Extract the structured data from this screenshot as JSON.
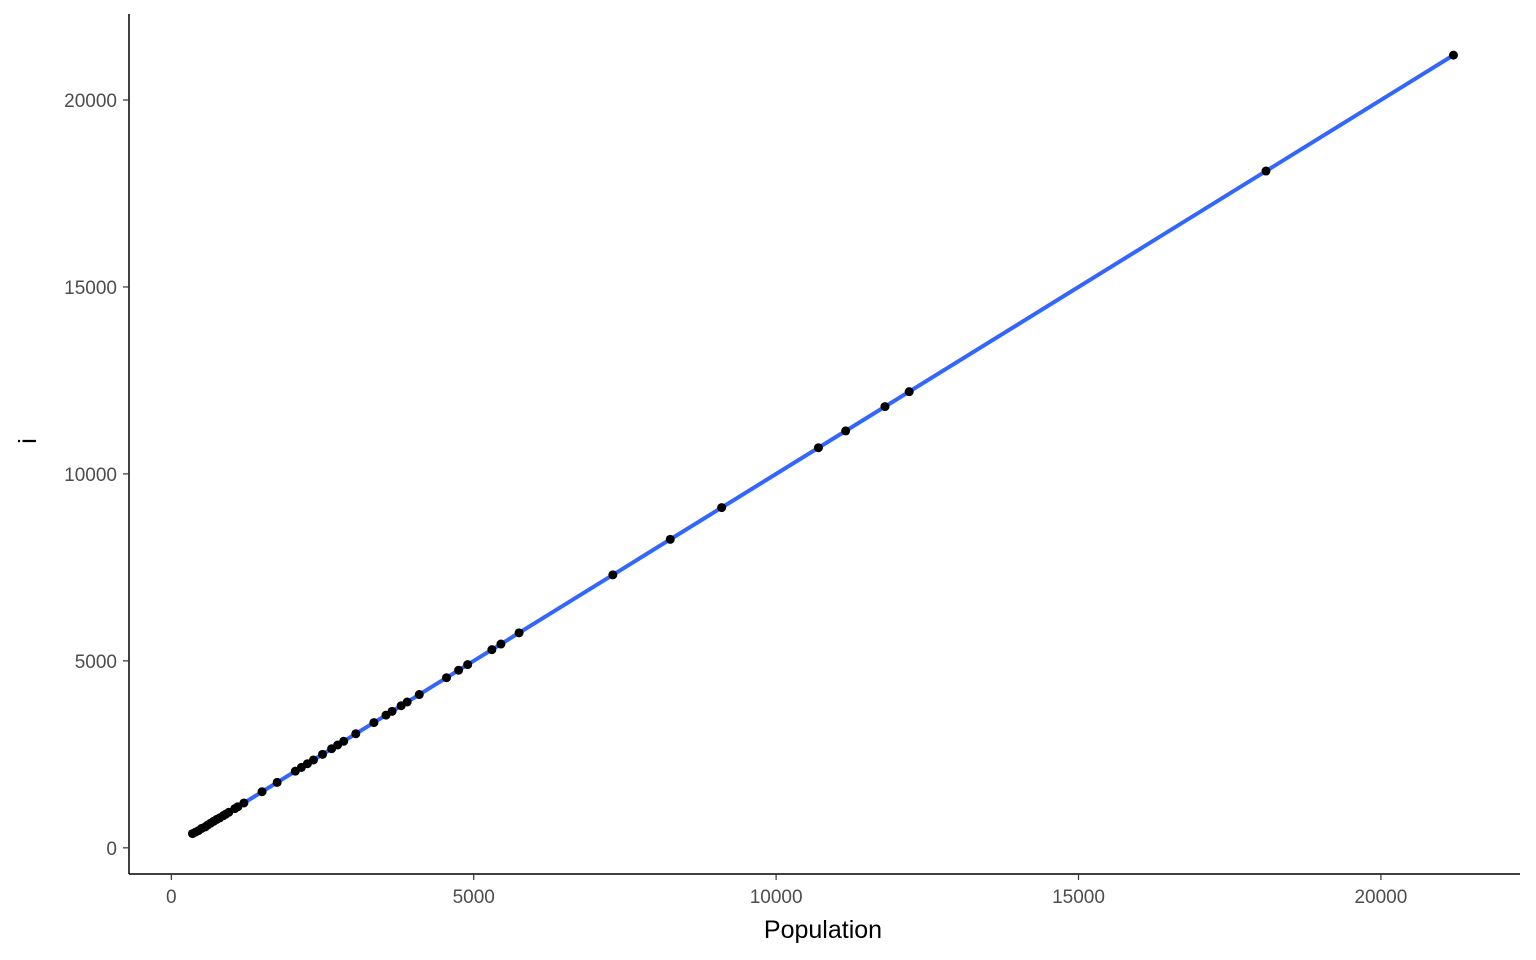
{
  "chart_data": {
    "type": "scatter",
    "title": "",
    "xlabel": "Population",
    "ylabel": "i",
    "xlim": [
      -700,
      22300
    ],
    "ylim": [
      -700,
      22300
    ],
    "x_ticks": [
      0,
      5000,
      10000,
      15000,
      20000
    ],
    "y_ticks": [
      0,
      5000,
      10000,
      15000,
      20000
    ],
    "x_tick_labels": [
      "0",
      "5000",
      "10000",
      "15000",
      "20000"
    ],
    "y_tick_labels": [
      "0",
      "5000",
      "10000",
      "15000",
      "20000"
    ],
    "grid": false,
    "series": [
      {
        "type": "scatter",
        "color": "#000000",
        "points": [
          [
            350,
            380
          ],
          [
            400,
            420
          ],
          [
            450,
            460
          ],
          [
            500,
            520
          ],
          [
            560,
            560
          ],
          [
            600,
            610
          ],
          [
            650,
            660
          ],
          [
            700,
            710
          ],
          [
            750,
            760
          ],
          [
            800,
            800
          ],
          [
            860,
            860
          ],
          [
            900,
            900
          ],
          [
            950,
            950
          ],
          [
            1050,
            1050
          ],
          [
            1100,
            1100
          ],
          [
            1200,
            1200
          ],
          [
            1500,
            1500
          ],
          [
            1750,
            1750
          ],
          [
            2050,
            2050
          ],
          [
            2150,
            2150
          ],
          [
            2250,
            2250
          ],
          [
            2350,
            2350
          ],
          [
            2500,
            2500
          ],
          [
            2650,
            2650
          ],
          [
            2750,
            2750
          ],
          [
            2850,
            2850
          ],
          [
            3050,
            3050
          ],
          [
            3350,
            3350
          ],
          [
            3550,
            3550
          ],
          [
            3650,
            3650
          ],
          [
            3800,
            3800
          ],
          [
            3900,
            3900
          ],
          [
            4100,
            4100
          ],
          [
            4550,
            4550
          ],
          [
            4750,
            4750
          ],
          [
            4900,
            4900
          ],
          [
            5300,
            5300
          ],
          [
            5450,
            5450
          ],
          [
            5750,
            5750
          ],
          [
            7300,
            7300
          ],
          [
            8250,
            8250
          ],
          [
            9100,
            9100
          ],
          [
            10700,
            10700
          ],
          [
            11150,
            11150
          ],
          [
            11800,
            11800
          ],
          [
            12200,
            12200
          ],
          [
            18100,
            18100
          ],
          [
            21200,
            21200
          ]
        ]
      },
      {
        "type": "line",
        "color": "#3366ff",
        "points": [
          [
            350,
            350
          ],
          [
            21200,
            21200
          ]
        ]
      }
    ]
  }
}
